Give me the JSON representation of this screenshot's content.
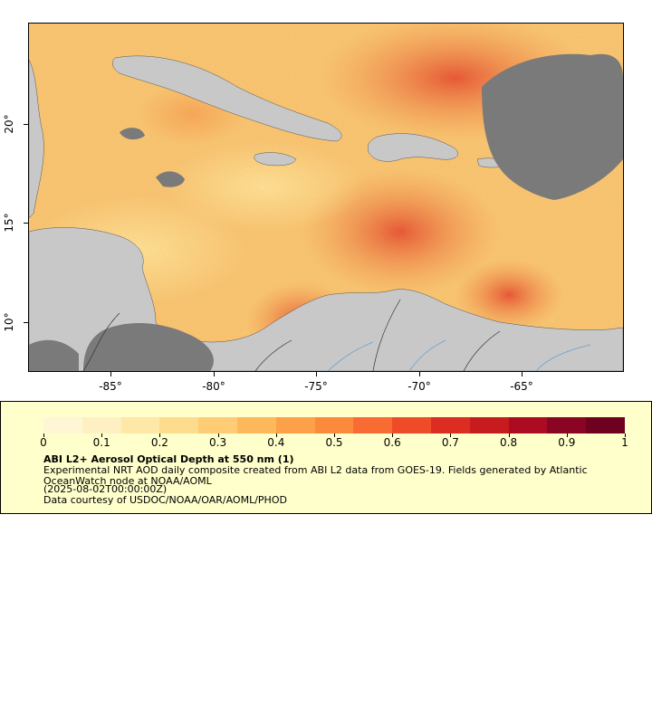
{
  "map": {
    "x_ticks": [
      "-85°",
      "-80°",
      "-75°",
      "-70°",
      "-65°"
    ],
    "y_ticks": [
      "20°",
      "15°",
      "10°"
    ],
    "colors": {
      "land": "#c8c8c8",
      "no_data": "#7a7a7a",
      "rivers": "#6f9fd0",
      "borders": "#333333"
    }
  },
  "legend": {
    "colorbar_ticks": [
      "0",
      "0.1",
      "0.2",
      "0.3",
      "0.4",
      "0.5",
      "0.6",
      "0.7",
      "0.8",
      "0.9",
      "1"
    ],
    "colorbar_colors": [
      "#fff6d6",
      "#fef0c2",
      "#fee8a8",
      "#fedc8e",
      "#fecc74",
      "#fdb85c",
      "#fda04a",
      "#fc8a3c",
      "#f86b32",
      "#ee4b28",
      "#dc2d22",
      "#c71c1f",
      "#ab0c22",
      "#8a0424",
      "#6e0020"
    ],
    "title": "ABI L2+ Aerosol Optical Depth at 550 nm (1)",
    "line1": "Experimental NRT AOD daily composite created from ABI L2 data from GOES-19. Fields generated by Atlantic OceanWatch node at NOAA/AOML",
    "line2": "(2025-08-02T00:00:00Z)",
    "line3": "Data courtesy of USDOC/NOAA/OAR/AOML/PHOD"
  }
}
